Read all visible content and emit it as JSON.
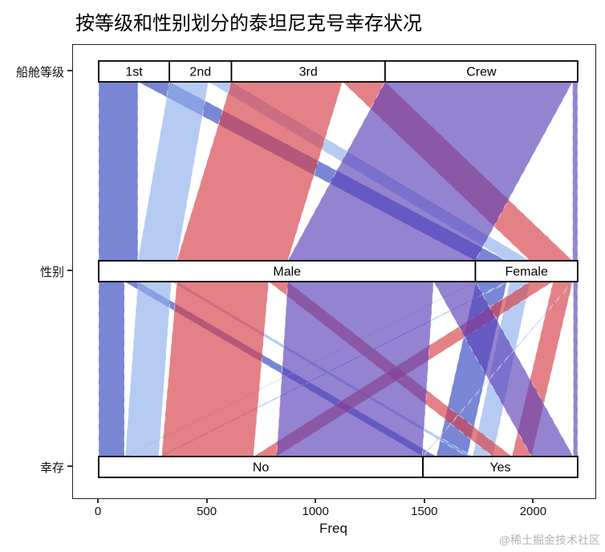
{
  "title": "按等级和性别划分的泰坦尼克号幸存状况",
  "watermark": "@稀土掘金技术社区",
  "chart_data": {
    "type": "parallel-sets",
    "title": "按等级和性别划分的泰坦尼克号幸存状况",
    "xlabel": "Freq",
    "x_ticks": [
      0,
      500,
      1000,
      1500,
      2000
    ],
    "x_max": 2201,
    "fill_opacity": 0.65,
    "fill_colors": {
      "1st": "#2F45BE",
      "2nd": "#8FAFEA",
      "3rd": "#D63E47",
      "Crew": "#5A41B8"
    },
    "axes": [
      {
        "name": "船舱等级",
        "categories": [
          {
            "label": "1st",
            "value": 325
          },
          {
            "label": "2nd",
            "value": 285
          },
          {
            "label": "3rd",
            "value": 706
          },
          {
            "label": "Crew",
            "value": 885
          }
        ]
      },
      {
        "name": "性别",
        "categories": [
          {
            "label": "Male",
            "value": 1731
          },
          {
            "label": "Female",
            "value": 470
          }
        ]
      },
      {
        "name": "幸存",
        "categories": [
          {
            "label": "No",
            "value": 1490
          },
          {
            "label": "Yes",
            "value": 711
          }
        ]
      }
    ],
    "flows_class_sex": [
      {
        "class": "1st",
        "sex": "Male",
        "value": 180
      },
      {
        "class": "1st",
        "sex": "Female",
        "value": 145
      },
      {
        "class": "2nd",
        "sex": "Male",
        "value": 179
      },
      {
        "class": "2nd",
        "sex": "Female",
        "value": 106
      },
      {
        "class": "3rd",
        "sex": "Male",
        "value": 510
      },
      {
        "class": "3rd",
        "sex": "Female",
        "value": 196
      },
      {
        "class": "Crew",
        "sex": "Male",
        "value": 862
      },
      {
        "class": "Crew",
        "sex": "Female",
        "value": 23
      }
    ],
    "flows_sex_survival": [
      {
        "class": "1st",
        "sex": "Male",
        "survived": "No",
        "value": 118
      },
      {
        "class": "1st",
        "sex": "Male",
        "survived": "Yes",
        "value": 62
      },
      {
        "class": "1st",
        "sex": "Female",
        "survived": "No",
        "value": 4
      },
      {
        "class": "1st",
        "sex": "Female",
        "survived": "Yes",
        "value": 141
      },
      {
        "class": "2nd",
        "sex": "Male",
        "survived": "No",
        "value": 154
      },
      {
        "class": "2nd",
        "sex": "Male",
        "survived": "Yes",
        "value": 25
      },
      {
        "class": "2nd",
        "sex": "Female",
        "survived": "No",
        "value": 13
      },
      {
        "class": "2nd",
        "sex": "Female",
        "survived": "Yes",
        "value": 93
      },
      {
        "class": "3rd",
        "sex": "Male",
        "survived": "No",
        "value": 422
      },
      {
        "class": "3rd",
        "sex": "Male",
        "survived": "Yes",
        "value": 88
      },
      {
        "class": "3rd",
        "sex": "Female",
        "survived": "No",
        "value": 106
      },
      {
        "class": "3rd",
        "sex": "Female",
        "survived": "Yes",
        "value": 90
      },
      {
        "class": "Crew",
        "sex": "Male",
        "survived": "No",
        "value": 670
      },
      {
        "class": "Crew",
        "sex": "Male",
        "survived": "Yes",
        "value": 192
      },
      {
        "class": "Crew",
        "sex": "Female",
        "survived": "No",
        "value": 3
      },
      {
        "class": "Crew",
        "sex": "Female",
        "survived": "Yes",
        "value": 20
      }
    ]
  }
}
